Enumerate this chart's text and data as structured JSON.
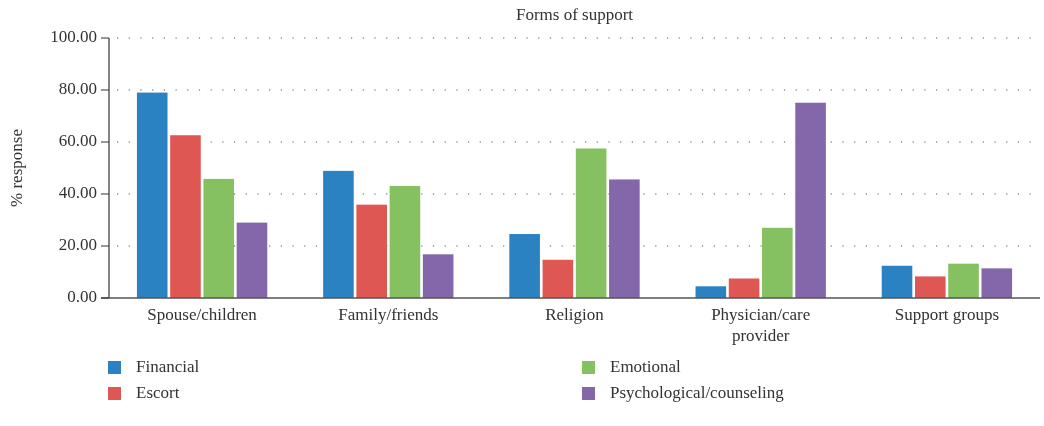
{
  "chart_data": {
    "type": "bar",
    "title": "Forms of support",
    "ylabel": "% response",
    "categories": [
      "Spouse/children",
      "Family/friends",
      "Religion",
      "Physician/care provider",
      "Support groups"
    ],
    "series": [
      {
        "name": "Financial",
        "color": "#2b82c2",
        "values": [
          79.0,
          48.9,
          24.6,
          4.5,
          12.4
        ]
      },
      {
        "name": "Escort",
        "color": "#de5753",
        "values": [
          62.6,
          35.9,
          14.7,
          7.5,
          8.3
        ]
      },
      {
        "name": "Emotional",
        "color": "#85c160",
        "values": [
          45.8,
          43.1,
          57.5,
          27.0,
          13.2
        ]
      },
      {
        "name": "Psychological/counseling",
        "color": "#8466aa",
        "values": [
          29.0,
          16.8,
          45.6,
          75.1,
          11.4
        ]
      }
    ],
    "ylim": [
      0,
      100
    ],
    "yticks": [
      {
        "value": 0,
        "label": "0.00"
      },
      {
        "value": 20,
        "label": "20.00"
      },
      {
        "value": 40,
        "label": "40.00"
      },
      {
        "value": 60,
        "label": "60.00"
      },
      {
        "value": 80,
        "label": "80.00"
      },
      {
        "value": 100,
        "label": "100.00"
      }
    ],
    "grid": "y",
    "legend": "bottom"
  }
}
